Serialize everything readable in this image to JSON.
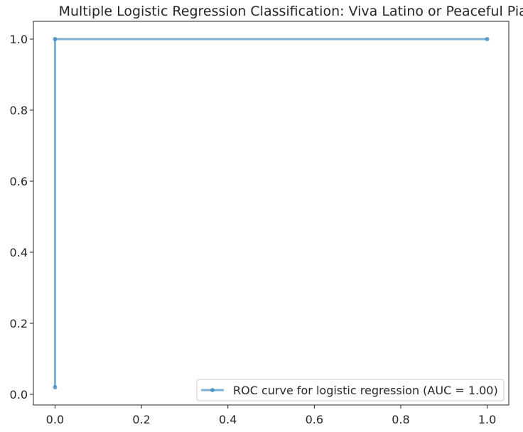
{
  "chart_data": {
    "type": "line",
    "title": "Multiple Logistic Regression Classification: Viva Latino or Peaceful Piano",
    "xlabel": "",
    "ylabel": "",
    "xlim": [
      -0.05,
      1.05
    ],
    "ylim": [
      -0.03,
      1.05
    ],
    "xticks": [
      0.0,
      0.2,
      0.4,
      0.6,
      0.8,
      1.0
    ],
    "xtick_labels": [
      "0.0",
      "0.2",
      "0.4",
      "0.6",
      "0.8",
      "1.0"
    ],
    "yticks": [
      0.0,
      0.2,
      0.4,
      0.6,
      0.8,
      1.0
    ],
    "ytick_labels": [
      "0.0",
      "0.2",
      "0.4",
      "0.6",
      "0.8",
      "1.0"
    ],
    "grid": false,
    "legend_position": "lower-right",
    "series": [
      {
        "name": "ROC curve for logistic regression (AUC = 1.00)",
        "color": "#3a87be",
        "marker": "circle",
        "x": [
          0.0,
          0.0,
          1.0
        ],
        "y": [
          0.02,
          1.0,
          1.0
        ]
      }
    ]
  }
}
